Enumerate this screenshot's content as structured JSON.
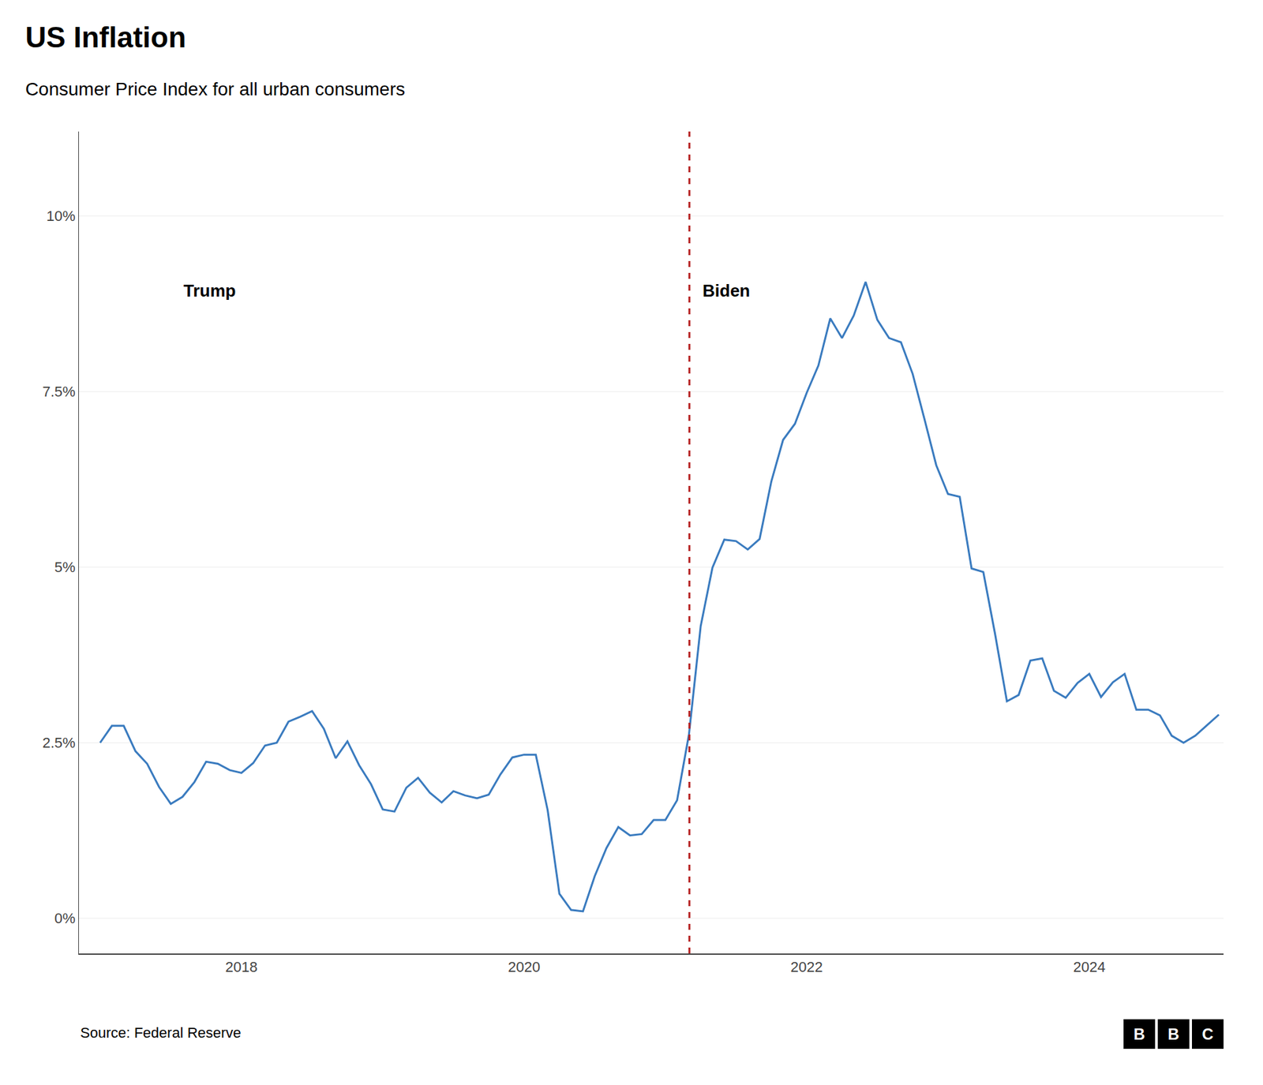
{
  "chart_data": {
    "type": "line",
    "title": "US Inflation",
    "subtitle": "Consumer Price Index for all urban consumers",
    "source": "Source: Federal Reserve",
    "logo": "BBC",
    "annotations": [
      "Trump",
      "Biden"
    ],
    "color": "#3a7bbf",
    "vline": {
      "x": 2021.17,
      "color": "#b52020",
      "line_style": "dashed"
    },
    "xlim": [
      2016.85,
      2024.95
    ],
    "ylim": [
      -0.5,
      11.2
    ],
    "xticks": [
      2018,
      2020,
      2022,
      2024
    ],
    "yticks": [
      {
        "value": 0,
        "label": "0%"
      },
      {
        "value": 2.5,
        "label": "2.5%"
      },
      {
        "value": 5.0,
        "label": "5%"
      },
      {
        "value": 7.5,
        "label": "7.5%"
      },
      {
        "value": 10.0,
        "label": "10%"
      }
    ],
    "grid": "y",
    "x": [
      2017.0,
      2017.083,
      2017.167,
      2017.25,
      2017.333,
      2017.417,
      2017.5,
      2017.583,
      2017.667,
      2017.75,
      2017.833,
      2017.917,
      2018.0,
      2018.083,
      2018.167,
      2018.25,
      2018.333,
      2018.417,
      2018.5,
      2018.583,
      2018.667,
      2018.75,
      2018.833,
      2018.917,
      2019.0,
      2019.083,
      2019.167,
      2019.25,
      2019.333,
      2019.417,
      2019.5,
      2019.583,
      2019.667,
      2019.75,
      2019.833,
      2019.917,
      2020.0,
      2020.083,
      2020.167,
      2020.25,
      2020.333,
      2020.417,
      2020.5,
      2020.583,
      2020.667,
      2020.75,
      2020.833,
      2020.917,
      2021.0,
      2021.083,
      2021.167,
      2021.25,
      2021.333,
      2021.417,
      2021.5,
      2021.583,
      2021.667,
      2021.75,
      2021.833,
      2021.917,
      2022.0,
      2022.083,
      2022.167,
      2022.25,
      2022.333,
      2022.417,
      2022.5,
      2022.583,
      2022.667,
      2022.75,
      2022.833,
      2022.917,
      2023.0,
      2023.083,
      2023.167,
      2023.25,
      2023.333,
      2023.417,
      2023.5,
      2023.583,
      2023.667,
      2023.75,
      2023.833,
      2023.917,
      2024.0,
      2024.083,
      2024.167,
      2024.25,
      2024.333,
      2024.417,
      2024.5,
      2024.583,
      2024.667,
      2024.75,
      2024.833,
      2024.917
    ],
    "values": [
      2.5,
      2.74,
      2.74,
      2.38,
      2.2,
      1.87,
      1.63,
      1.73,
      1.94,
      2.23,
      2.2,
      2.11,
      2.07,
      2.21,
      2.46,
      2.5,
      2.8,
      2.87,
      2.95,
      2.7,
      2.28,
      2.52,
      2.18,
      1.91,
      1.55,
      1.52,
      1.86,
      2.0,
      1.79,
      1.65,
      1.81,
      1.75,
      1.71,
      1.76,
      2.05,
      2.29,
      2.33,
      2.33,
      1.54,
      0.35,
      0.12,
      0.1,
      0.6,
      1.0,
      1.3,
      1.18,
      1.2,
      1.4,
      1.4,
      1.68,
      2.62,
      4.16,
      4.99,
      5.39,
      5.37,
      5.25,
      5.4,
      6.22,
      6.81,
      7.04,
      7.48,
      7.87,
      8.54,
      8.26,
      8.58,
      9.06,
      8.52,
      8.26,
      8.2,
      7.75,
      7.11,
      6.45,
      6.04,
      6.0,
      4.98,
      4.93,
      4.05,
      3.09,
      3.18,
      3.67,
      3.7,
      3.24,
      3.14,
      3.35,
      3.48,
      3.15,
      3.36,
      3.48,
      2.97,
      2.97,
      2.89,
      2.6,
      2.5,
      2.6,
      2.75,
      2.9
    ]
  }
}
